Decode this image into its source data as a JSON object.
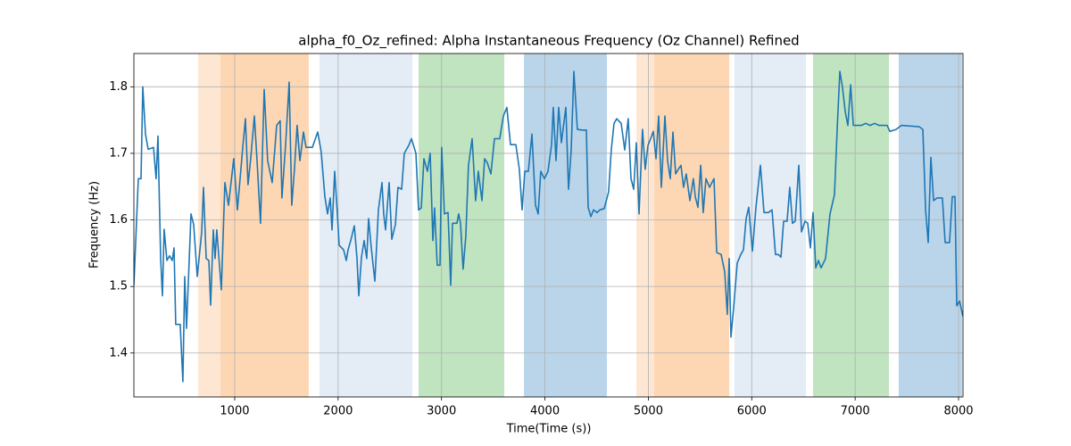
{
  "chart_data": {
    "type": "line",
    "title": "alpha_f0_Oz_refined: Alpha Instantaneous Frequency (Oz Channel) Refined",
    "x_label": "Time(Time (s))",
    "y_label": "Frequency (Hz)",
    "xlim": [
      25,
      8043
    ],
    "ylim": [
      1.334,
      1.85
    ],
    "xticks": [
      1000,
      2000,
      3000,
      4000,
      5000,
      6000,
      7000,
      8000
    ],
    "yticks": [
      1.4,
      1.5,
      1.6,
      1.7,
      1.8
    ],
    "grid": true,
    "spans": [
      {
        "x": [
          646,
          862
        ],
        "color": "#fee7d2"
      },
      {
        "x": [
          862,
          1716
        ],
        "color": "#fdd7b3"
      },
      {
        "x": [
          1820,
          2718
        ],
        "color": "#e4ecf6"
      },
      {
        "x": [
          2778,
          3607
        ],
        "color": "#c0e3c0"
      },
      {
        "x": [
          3797,
          4599
        ],
        "color": "#bad5ea"
      },
      {
        "x": [
          4884,
          5057
        ],
        "color": "#fee7d2"
      },
      {
        "x": [
          5057,
          5782
        ],
        "color": "#fdd7b3"
      },
      {
        "x": [
          5833,
          6524
        ],
        "color": "#e4ecf6"
      },
      {
        "x": [
          6593,
          7327
        ],
        "color": "#c0e3c0"
      },
      {
        "x": [
          7421,
          8034
        ],
        "color": "#bad5ea"
      }
    ],
    "x": [
      25,
      68,
      94,
      111,
      137,
      163,
      215,
      240,
      258,
      284,
      301,
      318,
      344,
      370,
      396,
      413,
      430,
      473,
      499,
      517,
      534,
      577,
      603,
      638,
      681,
      698,
      724,
      750,
      767,
      793,
      810,
      827,
      871,
      905,
      940,
      991,
      1026,
      1052,
      1078,
      1104,
      1129,
      1155,
      1190,
      1216,
      1250,
      1285,
      1319,
      1363,
      1406,
      1440,
      1457,
      1492,
      1527,
      1552,
      1578,
      1604,
      1630,
      1665,
      1690,
      1751,
      1803,
      1837,
      1872,
      1898,
      1924,
      1941,
      1967,
      1993,
      2010,
      2053,
      2079,
      2096,
      2122,
      2157,
      2183,
      2200,
      2226,
      2252,
      2277,
      2295,
      2321,
      2355,
      2390,
      2424,
      2441,
      2459,
      2493,
      2519,
      2554,
      2579,
      2614,
      2640,
      2683,
      2709,
      2752,
      2778,
      2804,
      2830,
      2864,
      2890,
      2916,
      2933,
      2959,
      2985,
      3002,
      3028,
      3063,
      3089,
      3106,
      3149,
      3166,
      3184,
      3209,
      3235,
      3261,
      3296,
      3330,
      3356,
      3391,
      3417,
      3443,
      3477,
      3512,
      3563,
      3598,
      3632,
      3667,
      3719,
      3753,
      3779,
      3805,
      3840,
      3874,
      3909,
      3935,
      3960,
      3995,
      4030,
      4064,
      4081,
      4107,
      4133,
      4159,
      4202,
      4228,
      4254,
      4280,
      4314,
      4357,
      4401,
      4418,
      4444,
      4470,
      4504,
      4530,
      4573,
      4616,
      4642,
      4668,
      4694,
      4737,
      4772,
      4806,
      4832,
      4858,
      4884,
      4910,
      4944,
      4970,
      4996,
      5022,
      5048,
      5074,
      5100,
      5126,
      5160,
      5186,
      5212,
      5238,
      5264,
      5290,
      5316,
      5341,
      5367,
      5402,
      5436,
      5454,
      5480,
      5506,
      5531,
      5557,
      5592,
      5635,
      5661,
      5704,
      5739,
      5764,
      5782,
      5799,
      5825,
      5859,
      5894,
      5920,
      5946,
      5971,
      6006,
      6041,
      6084,
      6118,
      6161,
      6196,
      6230,
      6256,
      6282,
      6308,
      6342,
      6368,
      6394,
      6420,
      6455,
      6481,
      6515,
      6541,
      6567,
      6593,
      6619,
      6645,
      6671,
      6714,
      6757,
      6800,
      6826,
      6852,
      6878,
      6904,
      6930,
      6956,
      6982,
      7016,
      7059,
      7102,
      7145,
      7188,
      7232,
      7275,
      7309,
      7335,
      7396,
      7447,
      7534,
      7620,
      7655,
      7681,
      7706,
      7732,
      7758,
      7793,
      7844,
      7870,
      7913,
      7939,
      7965,
      7983,
      8009,
      8043
    ],
    "series": [
      {
        "color": "#1f77b4",
        "values": [
          1.502,
          1.662,
          1.662,
          1.8,
          1.729,
          1.706,
          1.709,
          1.662,
          1.726,
          1.542,
          1.486,
          1.586,
          1.539,
          1.546,
          1.539,
          1.558,
          1.443,
          1.443,
          1.357,
          1.515,
          1.437,
          1.609,
          1.593,
          1.515,
          1.582,
          1.649,
          1.542,
          1.539,
          1.472,
          1.585,
          1.542,
          1.585,
          1.495,
          1.656,
          1.622,
          1.692,
          1.615,
          1.662,
          1.709,
          1.752,
          1.653,
          1.692,
          1.756,
          1.689,
          1.595,
          1.796,
          1.689,
          1.656,
          1.742,
          1.749,
          1.633,
          1.713,
          1.807,
          1.622,
          1.676,
          1.742,
          1.689,
          1.732,
          1.709,
          1.709,
          1.732,
          1.702,
          1.635,
          1.609,
          1.633,
          1.585,
          1.673,
          1.609,
          1.562,
          1.555,
          1.539,
          1.555,
          1.569,
          1.591,
          1.542,
          1.486,
          1.544,
          1.569,
          1.542,
          1.602,
          1.558,
          1.508,
          1.615,
          1.656,
          1.609,
          1.585,
          1.656,
          1.571,
          1.593,
          1.649,
          1.646,
          1.7,
          1.712,
          1.722,
          1.7,
          1.615,
          1.618,
          1.692,
          1.673,
          1.7,
          1.569,
          1.618,
          1.532,
          1.532,
          1.709,
          1.609,
          1.611,
          1.502,
          1.595,
          1.595,
          1.609,
          1.595,
          1.526,
          1.575,
          1.682,
          1.722,
          1.629,
          1.673,
          1.629,
          1.692,
          1.686,
          1.669,
          1.722,
          1.722,
          1.756,
          1.769,
          1.713,
          1.713,
          1.676,
          1.615,
          1.673,
          1.673,
          1.729,
          1.622,
          1.609,
          1.673,
          1.662,
          1.673,
          1.713,
          1.769,
          1.689,
          1.769,
          1.716,
          1.769,
          1.646,
          1.705,
          1.823,
          1.736,
          1.735,
          1.735,
          1.619,
          1.605,
          1.615,
          1.611,
          1.615,
          1.617,
          1.642,
          1.705,
          1.745,
          1.752,
          1.745,
          1.705,
          1.752,
          1.662,
          1.646,
          1.716,
          1.609,
          1.736,
          1.676,
          1.712,
          1.722,
          1.733,
          1.692,
          1.756,
          1.649,
          1.756,
          1.689,
          1.662,
          1.732,
          1.669,
          1.676,
          1.682,
          1.649,
          1.669,
          1.629,
          1.662,
          1.635,
          1.619,
          1.682,
          1.611,
          1.662,
          1.649,
          1.662,
          1.551,
          1.548,
          1.522,
          1.458,
          1.542,
          1.424,
          1.468,
          1.535,
          1.548,
          1.555,
          1.602,
          1.619,
          1.553,
          1.619,
          1.682,
          1.611,
          1.611,
          1.615,
          1.548,
          1.548,
          1.544,
          1.598,
          1.598,
          1.649,
          1.595,
          1.598,
          1.682,
          1.582,
          1.598,
          1.595,
          1.558,
          1.611,
          1.528,
          1.539,
          1.528,
          1.542,
          1.609,
          1.638,
          1.736,
          1.823,
          1.799,
          1.763,
          1.742,
          1.803,
          1.742,
          1.742,
          1.742,
          1.745,
          1.742,
          1.745,
          1.742,
          1.742,
          1.742,
          1.733,
          1.736,
          1.742,
          1.741,
          1.74,
          1.736,
          1.615,
          1.566,
          1.694,
          1.629,
          1.633,
          1.633,
          1.566,
          1.566,
          1.635,
          1.635,
          1.471,
          1.478,
          1.455
        ]
      }
    ]
  }
}
